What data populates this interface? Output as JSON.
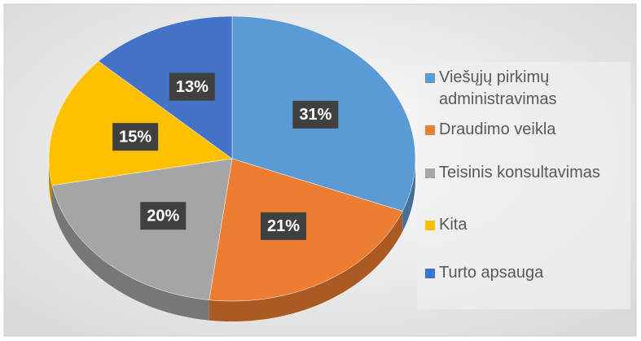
{
  "chart_data": {
    "type": "pie3d",
    "categories": [
      "Viešųjų pirkimų administravimas",
      "Draudimo veikla",
      "Teisinis konsultavimas",
      "Kita",
      "Turto apsauga"
    ],
    "values": [
      31,
      21,
      20,
      15,
      13
    ],
    "value_labels": [
      "31%",
      "21%",
      "20%",
      "15%",
      "13%"
    ],
    "colors": [
      "#5b9bd5",
      "#ed7d31",
      "#a5a5a5",
      "#ffc000",
      "#4472c4"
    ],
    "legend": "right"
  }
}
